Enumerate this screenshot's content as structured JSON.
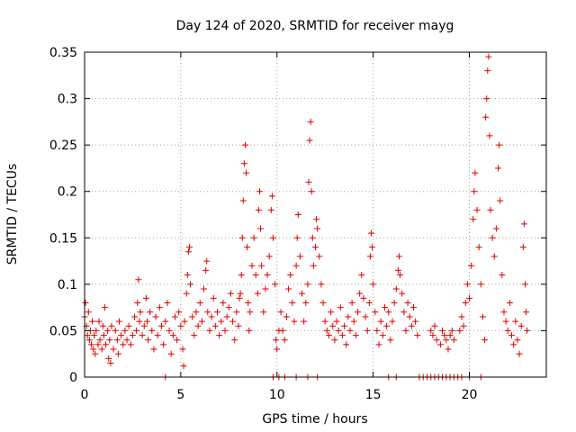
{
  "chart_data": {
    "type": "scatter",
    "title": "Day 124 of 2020, SRMTID for receiver mayg",
    "xlabel": "GPS time / hours",
    "ylabel": "SRMTID / TECUs",
    "xlim": [
      0,
      24
    ],
    "ylim": [
      0,
      0.35
    ],
    "x_ticks": [
      0,
      5,
      10,
      15,
      20
    ],
    "x_tick_labels": [
      "0",
      "5",
      "10",
      "15",
      "20"
    ],
    "y_ticks": [
      0,
      0.05,
      0.1,
      0.15,
      0.2,
      0.25,
      0.3,
      0.35
    ],
    "y_tick_labels": [
      "0",
      "0.05",
      "0.1",
      "0.15",
      "0.2",
      "0.25",
      "0.3",
      "0.35"
    ],
    "grid": true,
    "marker": "plus",
    "color": "#e00000",
    "series": [
      {
        "name": "SRMTID",
        "points": [
          [
            0.0,
            0.065
          ],
          [
            0.05,
            0.08
          ],
          [
            0.1,
            0.055
          ],
          [
            0.15,
            0.045
          ],
          [
            0.2,
            0.07
          ],
          [
            0.25,
            0.04
          ],
          [
            0.3,
            0.05
          ],
          [
            0.35,
            0.035
          ],
          [
            0.4,
            0.06
          ],
          [
            0.45,
            0.03
          ],
          [
            0.5,
            0.045
          ],
          [
            0.55,
            0.025
          ],
          [
            0.6,
            0.05
          ],
          [
            0.7,
            0.035
          ],
          [
            0.75,
            0.06
          ],
          [
            0.8,
            0.04
          ],
          [
            0.9,
            0.03
          ],
          [
            0.95,
            0.055
          ],
          [
            1.0,
            0.045
          ],
          [
            1.05,
            0.075
          ],
          [
            1.1,
            0.035
          ],
          [
            1.2,
            0.05
          ],
          [
            1.25,
            0.02
          ],
          [
            1.3,
            0.04
          ],
          [
            1.35,
            0.015
          ],
          [
            1.4,
            0.055
          ],
          [
            1.5,
            0.03
          ],
          [
            1.6,
            0.05
          ],
          [
            1.7,
            0.04
          ],
          [
            1.75,
            0.025
          ],
          [
            1.8,
            0.06
          ],
          [
            1.9,
            0.045
          ],
          [
            2.0,
            0.035
          ],
          [
            2.1,
            0.05
          ],
          [
            2.2,
            0.04
          ],
          [
            2.3,
            0.055
          ],
          [
            2.4,
            0.035
          ],
          [
            2.5,
            0.045
          ],
          [
            2.6,
            0.065
          ],
          [
            2.7,
            0.05
          ],
          [
            2.75,
            0.08
          ],
          [
            2.8,
            0.105
          ],
          [
            2.85,
            0.06
          ],
          [
            2.9,
            0.07
          ],
          [
            3.0,
            0.045
          ],
          [
            3.1,
            0.055
          ],
          [
            3.2,
            0.085
          ],
          [
            3.25,
            0.06
          ],
          [
            3.3,
            0.04
          ],
          [
            3.4,
            0.07
          ],
          [
            3.5,
            0.05
          ],
          [
            3.6,
            0.03
          ],
          [
            3.7,
            0.065
          ],
          [
            3.8,
            0.045
          ],
          [
            3.9,
            0.075
          ],
          [
            4.0,
            0.055
          ],
          [
            4.1,
            0.035
          ],
          [
            4.2,
            0.06
          ],
          [
            4.3,
            0.08
          ],
          [
            4.4,
            0.05
          ],
          [
            4.5,
            0.025
          ],
          [
            4.6,
            0.045
          ],
          [
            4.7,
            0.065
          ],
          [
            4.8,
            0.04
          ],
          [
            4.9,
            0.07
          ],
          [
            5.0,
            0.055
          ],
          [
            5.1,
            0.03
          ],
          [
            5.15,
            0.012
          ],
          [
            5.2,
            0.06
          ],
          [
            5.3,
            0.09
          ],
          [
            5.35,
            0.11
          ],
          [
            5.4,
            0.135
          ],
          [
            5.45,
            0.14
          ],
          [
            5.5,
            0.1
          ],
          [
            5.6,
            0.065
          ],
          [
            5.7,
            0.045
          ],
          [
            5.8,
            0.07
          ],
          [
            5.9,
            0.055
          ],
          [
            6.0,
            0.08
          ],
          [
            6.1,
            0.06
          ],
          [
            6.2,
            0.095
          ],
          [
            6.3,
            0.115
          ],
          [
            6.35,
            0.125
          ],
          [
            6.4,
            0.07
          ],
          [
            6.5,
            0.05
          ],
          [
            6.6,
            0.065
          ],
          [
            6.7,
            0.085
          ],
          [
            6.8,
            0.055
          ],
          [
            6.9,
            0.07
          ],
          [
            7.0,
            0.045
          ],
          [
            7.1,
            0.06
          ],
          [
            7.2,
            0.08
          ],
          [
            7.3,
            0.05
          ],
          [
            7.4,
            0.065
          ],
          [
            7.5,
            0.075
          ],
          [
            7.6,
            0.09
          ],
          [
            7.7,
            0.06
          ],
          [
            7.8,
            0.04
          ],
          [
            7.9,
            0.07
          ],
          [
            8.0,
            0.055
          ],
          [
            8.05,
            0.085
          ],
          [
            8.1,
            0.09
          ],
          [
            8.15,
            0.11
          ],
          [
            8.2,
            0.15
          ],
          [
            8.25,
            0.19
          ],
          [
            8.3,
            0.23
          ],
          [
            8.35,
            0.25
          ],
          [
            8.4,
            0.22
          ],
          [
            8.45,
            0.14
          ],
          [
            8.5,
            0.08
          ],
          [
            8.55,
            0.05
          ],
          [
            8.6,
            0.07
          ],
          [
            8.7,
            0.12
          ],
          [
            8.8,
            0.15
          ],
          [
            8.9,
            0.11
          ],
          [
            9.0,
            0.09
          ],
          [
            9.05,
            0.18
          ],
          [
            9.1,
            0.2
          ],
          [
            9.15,
            0.16
          ],
          [
            9.2,
            0.12
          ],
          [
            9.3,
            0.07
          ],
          [
            9.4,
            0.095
          ],
          [
            9.5,
            0.11
          ],
          [
            9.6,
            0.13
          ],
          [
            9.7,
            0.18
          ],
          [
            9.75,
            0.195
          ],
          [
            9.8,
            0.15
          ],
          [
            9.9,
            0.1
          ],
          [
            9.95,
            0.04
          ],
          [
            10.0,
            0.03
          ],
          [
            10.1,
            0.05
          ],
          [
            10.2,
            0.07
          ],
          [
            10.3,
            0.05
          ],
          [
            10.4,
            0.04
          ],
          [
            10.5,
            0.065
          ],
          [
            10.6,
            0.095
          ],
          [
            10.7,
            0.11
          ],
          [
            10.8,
            0.08
          ],
          [
            10.9,
            0.06
          ],
          [
            11.0,
            0.12
          ],
          [
            11.05,
            0.15
          ],
          [
            11.1,
            0.175
          ],
          [
            11.2,
            0.13
          ],
          [
            11.3,
            0.09
          ],
          [
            11.4,
            0.06
          ],
          [
            11.5,
            0.08
          ],
          [
            11.6,
            0.1
          ],
          [
            11.65,
            0.21
          ],
          [
            11.7,
            0.255
          ],
          [
            11.75,
            0.275
          ],
          [
            11.8,
            0.2
          ],
          [
            11.85,
            0.15
          ],
          [
            11.9,
            0.12
          ],
          [
            12.0,
            0.14
          ],
          [
            12.05,
            0.17
          ],
          [
            12.1,
            0.16
          ],
          [
            12.2,
            0.13
          ],
          [
            12.3,
            0.1
          ],
          [
            12.4,
            0.08
          ],
          [
            12.5,
            0.06
          ],
          [
            12.6,
            0.05
          ],
          [
            12.7,
            0.045
          ],
          [
            12.8,
            0.07
          ],
          [
            12.9,
            0.055
          ],
          [
            13.0,
            0.04
          ],
          [
            13.1,
            0.06
          ],
          [
            13.2,
            0.05
          ],
          [
            13.3,
            0.075
          ],
          [
            13.4,
            0.045
          ],
          [
            13.5,
            0.055
          ],
          [
            13.6,
            0.035
          ],
          [
            13.7,
            0.065
          ],
          [
            13.8,
            0.05
          ],
          [
            13.9,
            0.08
          ],
          [
            14.0,
            0.06
          ],
          [
            14.1,
            0.045
          ],
          [
            14.2,
            0.07
          ],
          [
            14.3,
            0.09
          ],
          [
            14.4,
            0.11
          ],
          [
            14.5,
            0.085
          ],
          [
            14.6,
            0.065
          ],
          [
            14.7,
            0.05
          ],
          [
            14.8,
            0.08
          ],
          [
            14.85,
            0.13
          ],
          [
            14.9,
            0.155
          ],
          [
            14.95,
            0.14
          ],
          [
            15.0,
            0.1
          ],
          [
            15.1,
            0.07
          ],
          [
            15.2,
            0.05
          ],
          [
            15.3,
            0.035
          ],
          [
            15.4,
            0.06
          ],
          [
            15.5,
            0.045
          ],
          [
            15.6,
            0.075
          ],
          [
            15.7,
            0.055
          ],
          [
            15.8,
            0.07
          ],
          [
            15.9,
            0.04
          ],
          [
            16.0,
            0.06
          ],
          [
            16.1,
            0.08
          ],
          [
            16.2,
            0.095
          ],
          [
            16.3,
            0.115
          ],
          [
            16.35,
            0.13
          ],
          [
            16.4,
            0.11
          ],
          [
            16.5,
            0.09
          ],
          [
            16.6,
            0.07
          ],
          [
            16.7,
            0.05
          ],
          [
            16.8,
            0.08
          ],
          [
            16.9,
            0.065
          ],
          [
            17.0,
            0.055
          ],
          [
            17.1,
            0.075
          ],
          [
            17.2,
            0.06
          ],
          [
            17.3,
            0.045
          ],
          [
            18.0,
            0.05
          ],
          [
            18.1,
            0.045
          ],
          [
            18.2,
            0.055
          ],
          [
            18.3,
            0.04
          ],
          [
            18.5,
            0.035
          ],
          [
            18.6,
            0.05
          ],
          [
            18.7,
            0.045
          ],
          [
            18.8,
            0.04
          ],
          [
            18.9,
            0.03
          ],
          [
            19.0,
            0.045
          ],
          [
            19.1,
            0.05
          ],
          [
            19.2,
            0.04
          ],
          [
            19.5,
            0.05
          ],
          [
            19.6,
            0.065
          ],
          [
            19.7,
            0.055
          ],
          [
            19.8,
            0.08
          ],
          [
            19.9,
            0.1
          ],
          [
            20.0,
            0.085
          ],
          [
            20.1,
            0.12
          ],
          [
            20.2,
            0.17
          ],
          [
            20.25,
            0.2
          ],
          [
            20.3,
            0.22
          ],
          [
            20.4,
            0.18
          ],
          [
            20.5,
            0.14
          ],
          [
            20.6,
            0.1
          ],
          [
            20.7,
            0.065
          ],
          [
            20.8,
            0.04
          ],
          [
            20.85,
            0.28
          ],
          [
            20.9,
            0.3
          ],
          [
            20.95,
            0.33
          ],
          [
            21.0,
            0.345
          ],
          [
            21.05,
            0.26
          ],
          [
            21.1,
            0.18
          ],
          [
            21.2,
            0.15
          ],
          [
            21.3,
            0.13
          ],
          [
            21.4,
            0.16
          ],
          [
            21.5,
            0.225
          ],
          [
            21.55,
            0.25
          ],
          [
            21.6,
            0.19
          ],
          [
            21.7,
            0.11
          ],
          [
            21.8,
            0.07
          ],
          [
            21.9,
            0.06
          ],
          [
            22.0,
            0.05
          ],
          [
            22.1,
            0.08
          ],
          [
            22.2,
            0.045
          ],
          [
            22.3,
            0.035
          ],
          [
            22.4,
            0.06
          ],
          [
            22.5,
            0.04
          ],
          [
            22.6,
            0.025
          ],
          [
            22.7,
            0.055
          ],
          [
            22.8,
            0.14
          ],
          [
            22.85,
            0.165
          ],
          [
            22.9,
            0.1
          ],
          [
            22.95,
            0.07
          ],
          [
            23.0,
            0.05
          ],
          [
            4.2,
            0.0
          ],
          [
            9.8,
            0.0
          ],
          [
            10.1,
            0.0
          ],
          [
            10.4,
            0.0
          ],
          [
            11.0,
            0.0
          ],
          [
            11.6,
            0.0
          ],
          [
            12.1,
            0.0
          ],
          [
            15.8,
            0.0
          ],
          [
            16.2,
            0.0
          ],
          [
            17.4,
            0.0
          ],
          [
            17.6,
            0.0
          ],
          [
            17.8,
            0.0
          ],
          [
            18.0,
            0.0
          ],
          [
            18.2,
            0.0
          ],
          [
            18.4,
            0.0
          ],
          [
            18.6,
            0.0
          ],
          [
            18.8,
            0.0
          ],
          [
            19.0,
            0.0
          ],
          [
            19.2,
            0.0
          ],
          [
            19.4,
            0.0
          ],
          [
            19.6,
            0.0
          ],
          [
            20.0,
            0.0
          ],
          [
            20.6,
            0.0
          ]
        ]
      }
    ]
  }
}
